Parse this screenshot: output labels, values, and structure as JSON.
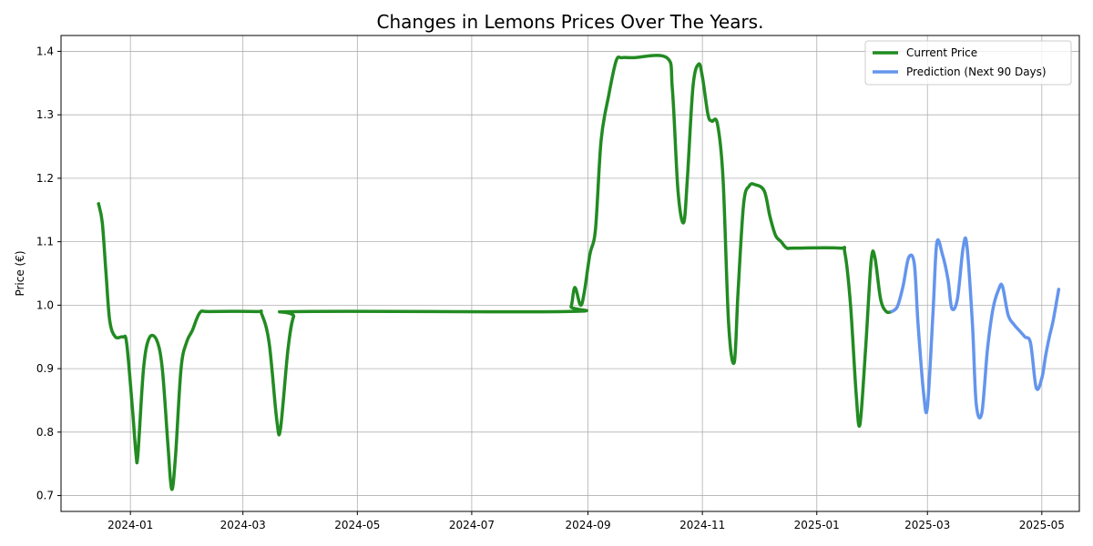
{
  "chart_data": {
    "type": "line",
    "title": "Changes in Lemons Prices Over The Years.",
    "xlabel": "",
    "ylabel": "Price (€)",
    "ylim": [
      0.675,
      1.425
    ],
    "xlim": [
      "2023-11-25",
      "2025-05-21"
    ],
    "grid": true,
    "legend_position": "top-right",
    "x_ticks": [
      "2024-01",
      "2024-03",
      "2024-05",
      "2024-07",
      "2024-09",
      "2024-11",
      "2025-01",
      "2025-03",
      "2025-05"
    ],
    "y_ticks": [
      "0.7",
      "0.8",
      "0.9",
      "1.0",
      "1.1",
      "1.2",
      "1.3",
      "1.4"
    ],
    "series": [
      {
        "name": "Current Price",
        "color": "#228b22",
        "x": [
          "2023-12-15",
          "2023-12-17",
          "2023-12-19",
          "2023-12-21",
          "2023-12-24",
          "2023-12-28",
          "2023-12-30",
          "2024-01-02",
          "2024-01-04",
          "2024-01-05",
          "2024-01-08",
          "2024-01-11",
          "2024-01-15",
          "2024-01-18",
          "2024-01-21",
          "2024-01-23",
          "2024-01-25",
          "2024-01-28",
          "2024-01-31",
          "2024-02-03",
          "2024-02-07",
          "2024-02-12",
          "2024-03-08",
          "2024-03-11",
          "2024-03-15",
          "2024-03-19",
          "2024-03-21",
          "2024-03-25",
          "2024-03-28",
          "2024-04-01",
          "2024-08-20",
          "2024-08-23",
          "2024-08-25",
          "2024-08-28",
          "2024-08-30",
          "2024-09-02",
          "2024-09-05",
          "2024-09-08",
          "2024-09-12",
          "2024-09-16",
          "2024-09-19",
          "2024-09-25",
          "2024-10-13",
          "2024-10-16",
          "2024-10-19",
          "2024-10-22",
          "2024-10-24",
          "2024-10-27",
          "2024-10-30",
          "2024-11-01",
          "2024-11-04",
          "2024-11-06",
          "2024-11-09",
          "2024-11-12",
          "2024-11-15",
          "2024-11-18",
          "2024-11-20",
          "2024-11-23",
          "2024-11-26",
          "2024-11-29",
          "2024-12-04",
          "2024-12-07",
          "2024-12-10",
          "2024-12-13",
          "2024-12-16",
          "2024-12-20",
          "2025-01-13",
          "2025-01-16",
          "2025-01-19",
          "2025-01-22",
          "2025-01-24",
          "2025-01-27",
          "2025-01-30",
          "2025-02-01",
          "2025-02-04",
          "2025-02-07",
          "2025-02-10"
        ],
        "values": [
          1.16,
          1.13,
          1.05,
          0.975,
          0.95,
          0.95,
          0.94,
          0.84,
          0.765,
          0.765,
          0.9,
          0.948,
          0.945,
          0.9,
          0.78,
          0.71,
          0.76,
          0.9,
          0.942,
          0.96,
          0.988,
          0.99,
          0.99,
          0.986,
          0.94,
          0.82,
          0.805,
          0.93,
          0.982,
          0.99,
          0.99,
          0.998,
          1.028,
          1.0,
          1.02,
          1.08,
          1.12,
          1.26,
          1.33,
          1.385,
          1.39,
          1.39,
          1.39,
          1.34,
          1.18,
          1.13,
          1.2,
          1.345,
          1.38,
          1.36,
          1.3,
          1.29,
          1.286,
          1.2,
          0.97,
          0.91,
          1.02,
          1.16,
          1.188,
          1.19,
          1.18,
          1.14,
          1.11,
          1.1,
          1.09,
          1.09,
          1.09,
          1.082,
          1.0,
          0.86,
          0.812,
          0.93,
          1.07,
          1.075,
          1.01,
          0.99,
          0.99
        ]
      },
      {
        "name": "Prediction (Next 90 Days)",
        "color": "#6495ed",
        "x": [
          "2025-02-10",
          "2025-02-13",
          "2025-02-16",
          "2025-02-19",
          "2025-02-22",
          "2025-02-24",
          "2025-02-27",
          "2025-03-01",
          "2025-03-04",
          "2025-03-06",
          "2025-03-09",
          "2025-03-12",
          "2025-03-14",
          "2025-03-17",
          "2025-03-20",
          "2025-03-22",
          "2025-03-25",
          "2025-03-27",
          "2025-03-30",
          "2025-04-02",
          "2025-04-05",
          "2025-04-08",
          "2025-04-10",
          "2025-04-13",
          "2025-04-16",
          "2025-04-19",
          "2025-04-22",
          "2025-04-25",
          "2025-04-28",
          "2025-05-01",
          "2025-05-03",
          "2025-05-05",
          "2025-05-07",
          "2025-05-10"
        ],
        "values": [
          0.99,
          0.998,
          1.03,
          1.075,
          1.065,
          0.97,
          0.86,
          0.84,
          0.99,
          1.098,
          1.08,
          1.04,
          0.995,
          1.01,
          1.09,
          1.095,
          0.97,
          0.845,
          0.83,
          0.93,
          0.995,
          1.025,
          1.03,
          0.985,
          0.97,
          0.96,
          0.95,
          0.94,
          0.87,
          0.885,
          0.92,
          0.95,
          0.975,
          1.025
        ]
      }
    ]
  }
}
